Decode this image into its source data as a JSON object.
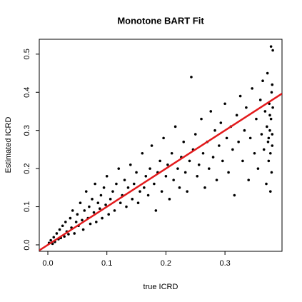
{
  "chart_data": {
    "type": "scatter",
    "title": "Monotone BART Fit",
    "x_label": "true ICRD",
    "y_label": "Estimated ICRD",
    "color": "#000000",
    "xlim": [
      -0.0145,
      0.3966
    ],
    "ylim": [
      -0.0169,
      0.539
    ],
    "xticks": [
      {
        "value": 0,
        "label": "0.0"
      },
      0.1,
      0.2,
      0.3
    ],
    "yticks": [
      {
        "value": 0,
        "label": "0.0"
      },
      0.1,
      0.2,
      0.3,
      0.4,
      0.5
    ],
    "reference_line": {
      "intercept": 0,
      "slope": 1,
      "color": "#e31a1c"
    },
    "x": [
      0.002,
      0.005,
      0.008,
      0.01,
      0.012,
      0.015,
      0.018,
      0.02,
      0.022,
      0.025,
      0.028,
      0.03,
      0.032,
      0.035,
      0.038,
      0.04,
      0.042,
      0.045,
      0.048,
      0.05,
      0.052,
      0.055,
      0.058,
      0.06,
      0.062,
      0.065,
      0.068,
      0.07,
      0.072,
      0.075,
      0.078,
      0.08,
      0.082,
      0.085,
      0.088,
      0.09,
      0.092,
      0.095,
      0.098,
      0.1,
      0.103,
      0.106,
      0.11,
      0.113,
      0.116,
      0.12,
      0.123,
      0.126,
      0.13,
      0.133,
      0.136,
      0.14,
      0.143,
      0.146,
      0.15,
      0.153,
      0.156,
      0.16,
      0.163,
      0.166,
      0.17,
      0.173,
      0.176,
      0.18,
      0.183,
      0.186,
      0.19,
      0.193,
      0.196,
      0.2,
      0.203,
      0.206,
      0.21,
      0.213,
      0.216,
      0.22,
      0.223,
      0.226,
      0.23,
      0.233,
      0.236,
      0.24,
      0.243,
      0.246,
      0.25,
      0.253,
      0.256,
      0.26,
      0.263,
      0.266,
      0.27,
      0.273,
      0.276,
      0.28,
      0.283,
      0.286,
      0.29,
      0.293,
      0.296,
      0.3,
      0.303,
      0.306,
      0.31,
      0.313,
      0.316,
      0.32,
      0.323,
      0.326,
      0.33,
      0.333,
      0.336,
      0.34,
      0.343,
      0.346,
      0.35,
      0.353,
      0.356,
      0.36,
      0.362,
      0.364,
      0.366,
      0.368,
      0.37,
      0.371,
      0.372,
      0.373,
      0.374,
      0.375,
      0.376,
      0.377,
      0.378,
      0.379,
      0.38,
      0.38,
      0.378,
      0.381,
      0.379,
      0.377,
      0.376,
      0.374,
      0.381,
      0.38
    ],
    "values": [
      0.005,
      0.012,
      0.003,
      0.02,
      0.008,
      0.03,
      0.015,
      0.04,
      0.018,
      0.05,
      0.022,
      0.06,
      0.035,
      0.028,
      0.07,
      0.045,
      0.09,
      0.03,
      0.06,
      0.08,
      0.05,
      0.11,
      0.065,
      0.04,
      0.09,
      0.14,
      0.07,
      0.1,
      0.055,
      0.12,
      0.085,
      0.16,
      0.06,
      0.11,
      0.095,
      0.13,
      0.07,
      0.15,
      0.105,
      0.18,
      0.08,
      0.12,
      0.14,
      0.09,
      0.16,
      0.2,
      0.11,
      0.13,
      0.17,
      0.1,
      0.15,
      0.21,
      0.12,
      0.16,
      0.19,
      0.11,
      0.14,
      0.24,
      0.15,
      0.18,
      0.13,
      0.2,
      0.26,
      0.16,
      0.09,
      0.19,
      0.22,
      0.14,
      0.28,
      0.18,
      0.21,
      0.12,
      0.24,
      0.17,
      0.31,
      0.2,
      0.15,
      0.23,
      0.27,
      0.19,
      0.14,
      0.22,
      0.44,
      0.25,
      0.29,
      0.18,
      0.21,
      0.33,
      0.24,
      0.15,
      0.27,
      0.2,
      0.35,
      0.23,
      0.3,
      0.17,
      0.26,
      0.32,
      0.22,
      0.37,
      0.28,
      0.19,
      0.31,
      0.25,
      0.13,
      0.34,
      0.27,
      0.39,
      0.22,
      0.3,
      0.36,
      0.17,
      0.28,
      0.41,
      0.24,
      0.33,
      0.2,
      0.38,
      0.29,
      0.43,
      0.25,
      0.35,
      0.16,
      0.31,
      0.45,
      0.27,
      0.22,
      0.37,
      0.3,
      0.14,
      0.33,
      0.4,
      0.26,
      0.29,
      0.52,
      0.51,
      0.19,
      0.24,
      0.34,
      0.28,
      0.36,
      0.42
    ]
  }
}
